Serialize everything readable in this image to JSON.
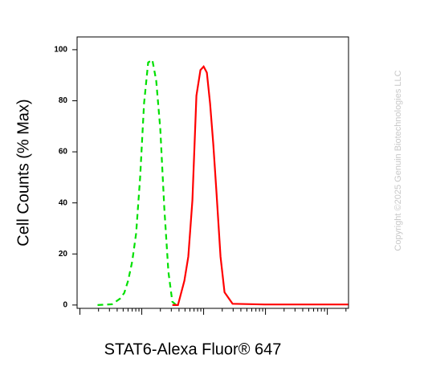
{
  "chart_data": {
    "type": "line",
    "y_label": "Cell Counts (% Max)",
    "x_label": "STAT6-Alexa Fluor® 647",
    "watermark": "Copyright ©2025 Genuin Biotechnologies LLC",
    "x_scale": "log",
    "xlim": [
      9,
      220000
    ],
    "xticks": [
      10,
      100,
      1000,
      10000,
      100000
    ],
    "x_minor_ticks": true,
    "ylim": [
      -1.3,
      105
    ],
    "yticks": [
      0,
      20,
      40,
      60,
      80,
      100
    ],
    "series": [
      {
        "color": "#00e000",
        "dash": true,
        "x": [
          19.3,
          33,
          44.6,
          52,
          60,
          70,
          81,
          94,
          109,
          127,
          148,
          171,
          199,
          231,
          269,
          312,
          361
        ],
        "values": [
          0,
          0.3,
          2.5,
          4.7,
          9.5,
          17,
          28,
          50,
          79,
          95,
          96,
          88,
          69,
          38,
          13,
          1.3,
          0
        ]
      },
      {
        "color": "#ff0000",
        "dash": false,
        "x": [
          312,
          384,
          488,
          566,
          658,
          764,
          887,
          1000,
          1128,
          1271,
          1432,
          1615,
          1875,
          2178,
          2938,
          9700,
          218000
        ],
        "values": [
          0,
          0,
          9.5,
          19,
          41,
          82,
          92,
          93.4,
          91,
          79,
          63,
          44,
          19,
          5,
          0.5,
          0.2,
          0.2
        ]
      }
    ]
  }
}
